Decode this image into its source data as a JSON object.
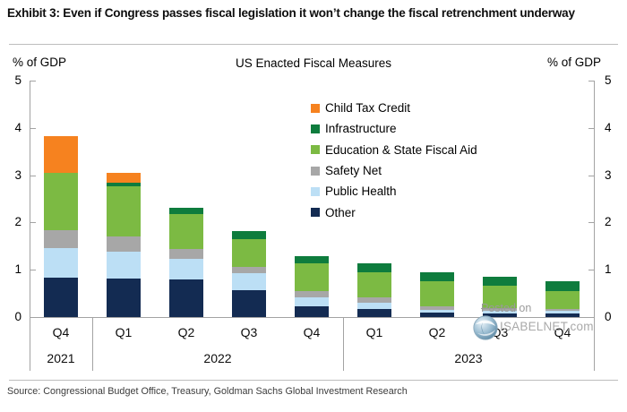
{
  "header": {
    "title": "Exhibit 3: Even if Congress passes fiscal legislation it won’t change the fiscal retrenchment underway"
  },
  "chart": {
    "title": "US Enacted Fiscal Measures",
    "y_axis_label_left": "% of GDP",
    "y_axis_label_right": "% of GDP"
  },
  "chart_data": {
    "type": "bar",
    "stacked": true,
    "title": "US Enacted Fiscal Measures",
    "ylabel": "% of GDP",
    "ylim": [
      0,
      5
    ],
    "yticks": [
      0,
      1,
      2,
      3,
      4,
      5
    ],
    "grid": false,
    "legend_position": "upper-center-right",
    "categories": [
      "Q4",
      "Q1",
      "Q2",
      "Q3",
      "Q4",
      "Q1",
      "Q2",
      "Q3",
      "Q4"
    ],
    "year_groups": [
      {
        "label": "2021",
        "span": 1
      },
      {
        "label": "2022",
        "span": 4
      },
      {
        "label": "2023",
        "span": 4
      }
    ],
    "series": [
      {
        "name": "Other",
        "color": "#132B52",
        "values": [
          0.84,
          0.82,
          0.79,
          0.57,
          0.23,
          0.17,
          0.09,
          0.08,
          0.08
        ]
      },
      {
        "name": "Public Health",
        "color": "#BCDFF5",
        "values": [
          0.62,
          0.56,
          0.44,
          0.35,
          0.18,
          0.14,
          0.06,
          0.05,
          0.05
        ]
      },
      {
        "name": "Safety Net",
        "color": "#A7A7A7",
        "values": [
          0.38,
          0.33,
          0.2,
          0.14,
          0.14,
          0.1,
          0.08,
          0.05,
          0.04
        ]
      },
      {
        "name": "Education & State Fiscal Aid",
        "color": "#7CBA43",
        "values": [
          1.2,
          1.06,
          0.75,
          0.59,
          0.58,
          0.54,
          0.53,
          0.49,
          0.37
        ]
      },
      {
        "name": "Infrastructure",
        "color": "#0E7C3D",
        "values": [
          0.0,
          0.07,
          0.13,
          0.16,
          0.15,
          0.18,
          0.19,
          0.18,
          0.21
        ]
      },
      {
        "name": "Child Tax Credit",
        "color": "#F6821F",
        "values": [
          0.78,
          0.21,
          0.0,
          0.0,
          0.0,
          0.0,
          0.0,
          0.0,
          0.0
        ]
      }
    ],
    "legend_order_top_to_bottom": [
      "Child Tax Credit",
      "Infrastructure",
      "Education & State Fiscal Aid",
      "Safety Net",
      "Public Health",
      "Other"
    ],
    "totals": [
      3.82,
      3.05,
      2.31,
      1.81,
      1.28,
      1.13,
      0.95,
      0.85,
      0.75
    ]
  },
  "watermark": {
    "posted_word": "Posted",
    "on_word": "on",
    "site": "ISABELNET.com"
  },
  "footer": {
    "source": "Source: Congressional Budget Office, Treasury, Goldman Sachs Global Investment Research"
  }
}
